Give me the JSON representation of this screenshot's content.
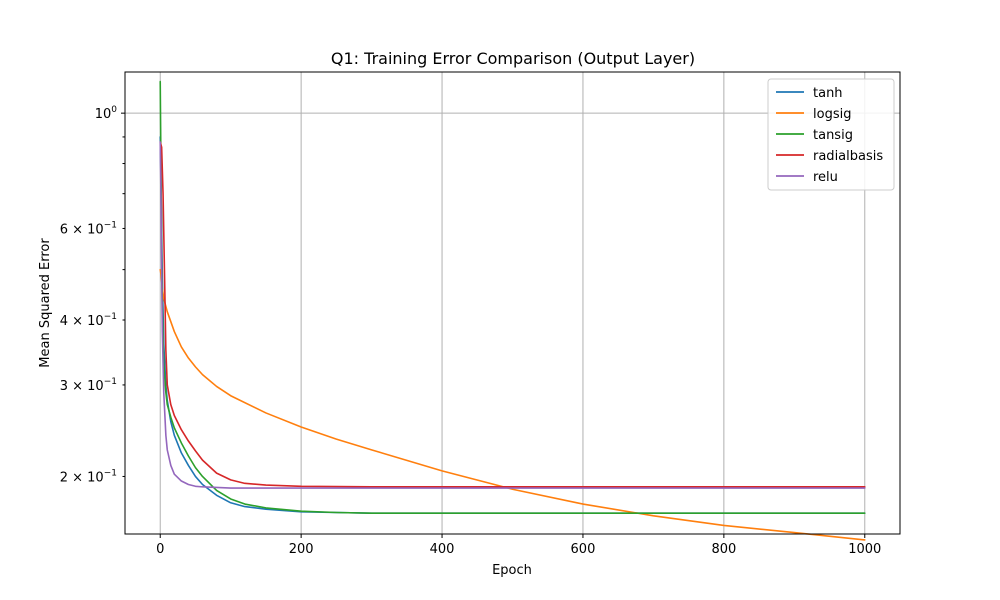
{
  "chart_data": {
    "type": "line",
    "title": "Q1: Training Error Comparison (Output Layer)",
    "xlabel": "Epoch",
    "ylabel": "Mean Squared Error",
    "yscale": "log",
    "xlim": [
      -50,
      1050
    ],
    "ylim": [
      0.155,
      1.2
    ],
    "grid": true,
    "legend_position": "top-right",
    "x_ticks": [
      {
        "value": 0,
        "label": "0"
      },
      {
        "value": 200,
        "label": "200"
      },
      {
        "value": 400,
        "label": "400"
      },
      {
        "value": 600,
        "label": "600"
      },
      {
        "value": 800,
        "label": "800"
      },
      {
        "value": 1000,
        "label": "1000"
      }
    ],
    "y_major_ticks": [
      {
        "value": 1.0,
        "base": "10",
        "exp": "0"
      }
    ],
    "y_minor_ticks": [
      {
        "value": 0.2,
        "coef": "2",
        "exp": "−1"
      },
      {
        "value": 0.3,
        "coef": "3",
        "exp": "−1"
      },
      {
        "value": 0.4,
        "coef": "4",
        "exp": "−1"
      },
      {
        "value": 0.5,
        "coef": "",
        "exp": ""
      },
      {
        "value": 0.6,
        "coef": "6",
        "exp": "−1"
      },
      {
        "value": 0.7,
        "coef": "",
        "exp": ""
      },
      {
        "value": 0.8,
        "coef": "",
        "exp": ""
      },
      {
        "value": 0.9,
        "coef": "",
        "exp": ""
      }
    ],
    "series": [
      {
        "name": "tanh",
        "color": "#1f77b4",
        "x": [
          0,
          1,
          2,
          3,
          5,
          8,
          10,
          15,
          20,
          30,
          40,
          50,
          60,
          80,
          100,
          120,
          150,
          200,
          250,
          300,
          400,
          500,
          600,
          700,
          800,
          900,
          1000
        ],
        "y": [
          0.9,
          0.75,
          0.6,
          0.48,
          0.36,
          0.3,
          0.28,
          0.255,
          0.24,
          0.222,
          0.21,
          0.2,
          0.193,
          0.184,
          0.178,
          0.175,
          0.173,
          0.171,
          0.1705,
          0.17,
          0.17,
          0.17,
          0.17,
          0.17,
          0.17,
          0.17,
          0.17
        ]
      },
      {
        "name": "logsig",
        "color": "#ff7f0e",
        "x": [
          0,
          1,
          2,
          3,
          5,
          10,
          20,
          30,
          40,
          50,
          60,
          80,
          100,
          150,
          200,
          250,
          300,
          400,
          500,
          600,
          700,
          800,
          900,
          1000
        ],
        "y": [
          0.5,
          0.49,
          0.475,
          0.46,
          0.44,
          0.415,
          0.38,
          0.355,
          0.338,
          0.325,
          0.314,
          0.298,
          0.286,
          0.265,
          0.249,
          0.236,
          0.225,
          0.205,
          0.189,
          0.177,
          0.168,
          0.161,
          0.156,
          0.151
        ]
      },
      {
        "name": "tansig",
        "color": "#2ca02c",
        "x": [
          0,
          1,
          2,
          3,
          5,
          8,
          10,
          15,
          20,
          30,
          40,
          50,
          60,
          80,
          100,
          120,
          150,
          200,
          250,
          300,
          400,
          500,
          600,
          700,
          800,
          900,
          1000
        ],
        "y": [
          1.15,
          0.8,
          0.55,
          0.42,
          0.33,
          0.29,
          0.275,
          0.26,
          0.248,
          0.232,
          0.219,
          0.208,
          0.2,
          0.188,
          0.181,
          0.177,
          0.174,
          0.1715,
          0.1705,
          0.17,
          0.17,
          0.17,
          0.17,
          0.17,
          0.17,
          0.17,
          0.17
        ]
      },
      {
        "name": "radialbasis",
        "color": "#d62728",
        "x": [
          0,
          2,
          4,
          6,
          8,
          10,
          15,
          20,
          30,
          40,
          50,
          60,
          80,
          100,
          120,
          150,
          200,
          300,
          400,
          500,
          600,
          700,
          800,
          900,
          1000
        ],
        "y": [
          0.88,
          0.86,
          0.7,
          0.5,
          0.35,
          0.3,
          0.275,
          0.262,
          0.246,
          0.234,
          0.224,
          0.215,
          0.203,
          0.197,
          0.194,
          0.1925,
          0.1915,
          0.191,
          0.191,
          0.191,
          0.191,
          0.191,
          0.191,
          0.191,
          0.191
        ]
      },
      {
        "name": "relu",
        "color": "#9467bd",
        "x": [
          0,
          1,
          2,
          3,
          5,
          8,
          10,
          15,
          20,
          30,
          40,
          50,
          60,
          80,
          100,
          150,
          200,
          300,
          400,
          500,
          600,
          700,
          800,
          900,
          1000
        ],
        "y": [
          0.88,
          0.7,
          0.5,
          0.38,
          0.29,
          0.24,
          0.225,
          0.21,
          0.202,
          0.196,
          0.193,
          0.1915,
          0.191,
          0.1905,
          0.19,
          0.19,
          0.19,
          0.19,
          0.19,
          0.19,
          0.19,
          0.19,
          0.19,
          0.19,
          0.19
        ]
      }
    ]
  }
}
